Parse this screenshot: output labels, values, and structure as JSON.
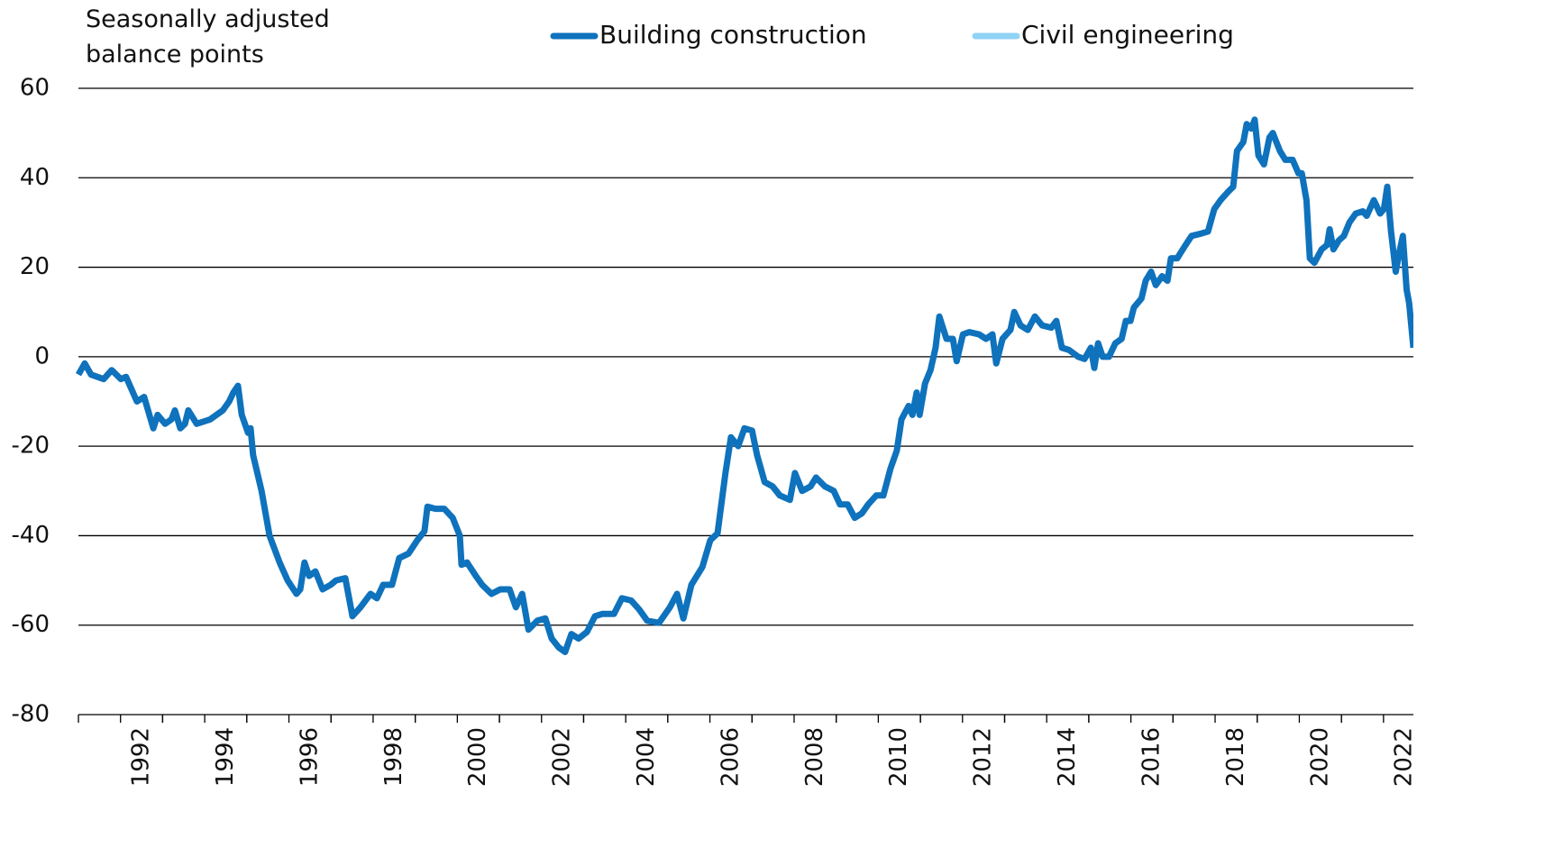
{
  "chart_data": {
    "type": "line",
    "y_label": "Seasonally adjusted balance points",
    "ylim": [
      -80,
      60
    ],
    "yticks": [
      -80,
      -60,
      -40,
      -20,
      0,
      20,
      40,
      60
    ],
    "xlim": [
      1991,
      2022.71
    ],
    "xticks": [
      1992,
      1994,
      1996,
      1998,
      2000,
      2002,
      2004,
      2006,
      2008,
      2010,
      2012,
      2014,
      2016,
      2018,
      2020,
      2022
    ],
    "grid": true,
    "legend": "top",
    "series": [
      {
        "name": "Building construction",
        "color": "#0f72bc",
        "x": [
          1991.0,
          1991.15,
          1991.3,
          1991.6,
          1991.79,
          1992.01,
          1992.13,
          1992.39,
          1992.56,
          1992.78,
          1992.88,
          1993.06,
          1993.21,
          1993.29,
          1993.42,
          1993.53,
          1993.61,
          1993.81,
          1994.13,
          1994.28,
          1994.43,
          1994.58,
          1994.68,
          1994.79,
          1994.88,
          1995.03,
          1995.09,
          1995.15,
          1995.35,
          1995.54,
          1995.78,
          1995.97,
          1996.18,
          1996.27,
          1996.37,
          1996.48,
          1996.63,
          1996.8,
          1996.99,
          1997.12,
          1997.34,
          1997.51,
          1997.7,
          1997.94,
          1998.09,
          1998.24,
          1998.45,
          1998.62,
          1998.84,
          1999.05,
          1999.22,
          1999.29,
          1999.48,
          1999.69,
          1999.89,
          2000.06,
          2000.1,
          2000.23,
          2000.44,
          2000.59,
          2000.81,
          2001.02,
          2001.24,
          2001.39,
          2001.54,
          2001.69,
          2001.9,
          2002.09,
          2002.24,
          2002.41,
          2002.56,
          2002.71,
          2002.88,
          2003.08,
          2003.27,
          2003.44,
          2003.72,
          2003.91,
          2004.13,
          2004.32,
          2004.51,
          2004.79,
          2005.05,
          2005.22,
          2005.37,
          2005.56,
          2005.82,
          2006.01,
          2006.18,
          2006.37,
          2006.5,
          2006.67,
          2006.82,
          2007.0,
          2007.12,
          2007.3,
          2007.49,
          2007.66,
          2007.9,
          2008.02,
          2008.19,
          2008.39,
          2008.52,
          2008.73,
          2008.94,
          2009.09,
          2009.27,
          2009.44,
          2009.61,
          2009.76,
          2009.95,
          2010.12,
          2010.29,
          2010.44,
          2010.55,
          2010.72,
          2010.81,
          2010.91,
          2010.98,
          2011.11,
          2011.24,
          2011.36,
          2011.45,
          2011.62,
          2011.77,
          2011.86,
          2012.01,
          2012.16,
          2012.39,
          2012.56,
          2012.71,
          2012.8,
          2012.95,
          2013.14,
          2013.23,
          2013.38,
          2013.55,
          2013.72,
          2013.89,
          2014.11,
          2014.23,
          2014.36,
          2014.53,
          2014.75,
          2014.9,
          2015.05,
          2015.13,
          2015.22,
          2015.33,
          2015.48,
          2015.63,
          2015.78,
          2015.88,
          2015.99,
          2016.07,
          2016.25,
          2016.35,
          2016.48,
          2016.59,
          2016.74,
          2016.87,
          2016.95,
          2017.1,
          2017.3,
          2017.44,
          2017.66,
          2017.83,
          2017.98,
          2018.13,
          2018.32,
          2018.43,
          2018.52,
          2018.67,
          2018.75,
          2018.86,
          2018.94,
          2019.03,
          2019.16,
          2019.29,
          2019.37,
          2019.54,
          2019.67,
          2019.84,
          2019.98,
          2020.06,
          2020.17,
          2020.25,
          2020.36,
          2020.53,
          2020.66,
          2020.72,
          2020.81,
          2020.94,
          2021.06,
          2021.19,
          2021.34,
          2021.51,
          2021.6,
          2021.77,
          2021.92,
          2022.01,
          2022.09,
          2022.18,
          2022.29,
          2022.37,
          2022.46,
          2022.55,
          2022.61,
          2022.71
        ],
        "values": [
          -4,
          -1.5,
          -4,
          -5,
          -3,
          -5,
          -4.5,
          -10,
          -9,
          -16,
          -13,
          -15,
          -14,
          -12,
          -16,
          -15,
          -12,
          -15,
          -14,
          -13,
          -12,
          -10,
          -8,
          -6.5,
          -13,
          -17,
          -16,
          -22,
          -30,
          -40,
          -46,
          -50,
          -53,
          -52,
          -46,
          -49,
          -48,
          -52,
          -51,
          -50,
          -49.5,
          -58,
          -56,
          -53,
          -54,
          -51,
          -51,
          -45,
          -44,
          -41,
          -39,
          -33.5,
          -34,
          -34,
          -36,
          -40,
          -46.5,
          -46,
          -49,
          -51,
          -53,
          -52,
          -52,
          -56,
          -53,
          -61,
          -59,
          -58.5,
          -63,
          -65,
          -66,
          -62,
          -63,
          -61.5,
          -58,
          -57.5,
          -57.5,
          -54,
          -54.5,
          -56.5,
          -59,
          -59.5,
          -56,
          -53,
          -58.5,
          -51,
          -47,
          -41,
          -39.5,
          -26,
          -18,
          -20,
          -16,
          -16.5,
          -22,
          -28,
          -29,
          -31,
          -32,
          -26,
          -30,
          -29,
          -27,
          -29,
          -30,
          -33,
          -33,
          -36,
          -35,
          -33,
          -31,
          -31,
          -25,
          -21,
          -14,
          -11,
          -13,
          -8,
          -13,
          -6,
          -3,
          2,
          9,
          4,
          4,
          -1,
          5,
          5.5,
          5,
          4,
          5,
          -1.5,
          4,
          6,
          10,
          7,
          6,
          9,
          7,
          6.5,
          8,
          2,
          1.5,
          0,
          -0.5,
          2,
          -2.5,
          3,
          0,
          0,
          3,
          4,
          8,
          8,
          11,
          13,
          17,
          19,
          16,
          18,
          17,
          22,
          22,
          25,
          27,
          27.5,
          28,
          33,
          35,
          37,
          38,
          46,
          48,
          52,
          51,
          53,
          45,
          43,
          49,
          50,
          46,
          44,
          44,
          41,
          41,
          35,
          22,
          21,
          24,
          25,
          28.5,
          24,
          26,
          27,
          30,
          32,
          32.5,
          31.5,
          35,
          32,
          33,
          38,
          28,
          19,
          23,
          27,
          15,
          12,
          2
        ]
      },
      {
        "name": "Civil engineering",
        "color": "#8fd3f5",
        "x": [],
        "values": []
      }
    ]
  }
}
